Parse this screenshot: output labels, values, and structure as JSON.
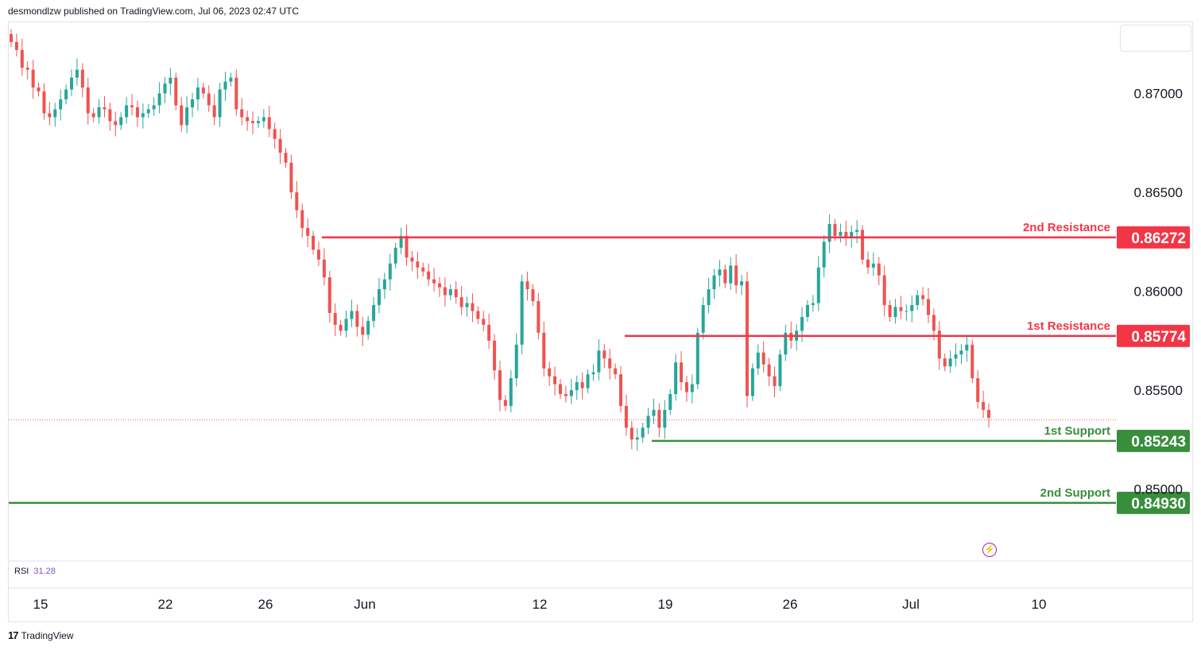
{
  "header": {
    "published": "desmondlzw published on TradingView.com, Jul 06, 2023 02:47 UTC"
  },
  "footer": {
    "brand": "TradingView",
    "logo_glyph": "17"
  },
  "rsi": {
    "label": "RSI",
    "value": "31.28"
  },
  "colors": {
    "up": "#26a69a",
    "down": "#ef5350",
    "resistance": "#f23645",
    "support": "#388e3c",
    "text": "#131722"
  },
  "chart_data": {
    "type": "candlestick",
    "instrument": "",
    "ylim": [
      0.8464,
      0.8736
    ],
    "y_ticks": [
      "0.87000",
      "0.86500",
      "0.86000",
      "0.85500",
      "0.85000"
    ],
    "x_ticks": [
      "15",
      "22",
      "26",
      "Jun",
      "12",
      "19",
      "26",
      "Jul",
      "10"
    ],
    "last_price": 0.8535,
    "levels": [
      {
        "name": "2nd Resistance",
        "value": "0.86272",
        "kind": "resistance"
      },
      {
        "name": "1st Resistance",
        "value": "0.85774",
        "kind": "resistance"
      },
      {
        "name": "1st Support",
        "value": "0.85243",
        "kind": "support"
      },
      {
        "name": "2nd Support",
        "value": "0.84930",
        "kind": "support"
      }
    ],
    "close_series": [
      0.8726,
      0.8722,
      0.8713,
      0.8712,
      0.8703,
      0.8701,
      0.869,
      0.8688,
      0.8692,
      0.8697,
      0.8702,
      0.8708,
      0.8712,
      0.8703,
      0.869,
      0.8688,
      0.8693,
      0.8692,
      0.8686,
      0.8684,
      0.8688,
      0.8694,
      0.8693,
      0.8688,
      0.869,
      0.8692,
      0.8694,
      0.87,
      0.8705,
      0.8708,
      0.8694,
      0.8684,
      0.8693,
      0.8697,
      0.8703,
      0.87,
      0.8694,
      0.8688,
      0.8702,
      0.8706,
      0.8708,
      0.8692,
      0.8688,
      0.8686,
      0.8685,
      0.8686,
      0.8688,
      0.8682,
      0.8677,
      0.867,
      0.8665,
      0.865,
      0.8641,
      0.8632,
      0.8628,
      0.8621,
      0.8616,
      0.8607,
      0.8589,
      0.8583,
      0.858,
      0.8586,
      0.859,
      0.8582,
      0.8578,
      0.8585,
      0.8593,
      0.8601,
      0.8606,
      0.8614,
      0.8622,
      0.8628,
      0.8617,
      0.8615,
      0.8612,
      0.861,
      0.8606,
      0.8604,
      0.8602,
      0.8598,
      0.8601,
      0.8597,
      0.8592,
      0.8594,
      0.859,
      0.8586,
      0.8583,
      0.8575,
      0.856,
      0.8545,
      0.8542,
      0.8556,
      0.8573,
      0.8605,
      0.8601,
      0.8595,
      0.8579,
      0.8561,
      0.8557,
      0.8553,
      0.8548,
      0.8547,
      0.855,
      0.8554,
      0.8551,
      0.8558,
      0.8559,
      0.857,
      0.8566,
      0.8561,
      0.8558,
      0.8542,
      0.8531,
      0.8525,
      0.8526,
      0.8531,
      0.8537,
      0.854,
      0.8531,
      0.854,
      0.8548,
      0.8564,
      0.8554,
      0.8549,
      0.8553,
      0.8579,
      0.8593,
      0.8601,
      0.8608,
      0.8611,
      0.8604,
      0.8613,
      0.8603,
      0.8605,
      0.8547,
      0.8561,
      0.8569,
      0.8563,
      0.8557,
      0.8552,
      0.8568,
      0.8579,
      0.8575,
      0.858,
      0.8587,
      0.8593,
      0.8594,
      0.8612,
      0.8625,
      0.8634,
      0.8628,
      0.863,
      0.8627,
      0.863,
      0.8631,
      0.8616,
      0.8612,
      0.8614,
      0.8608,
      0.8593,
      0.8587,
      0.8592,
      0.859,
      0.859,
      0.8593,
      0.8598,
      0.8596,
      0.8588,
      0.858,
      0.8566,
      0.8562,
      0.8566,
      0.8568,
      0.857,
      0.8573,
      0.8556,
      0.8544,
      0.854,
      0.8536
    ]
  }
}
